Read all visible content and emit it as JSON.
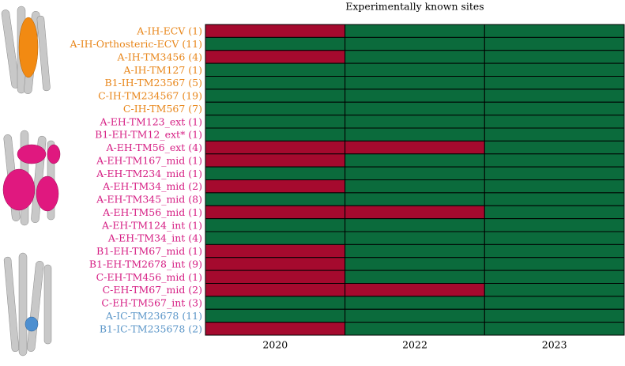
{
  "chart_data": {
    "type": "heatmap",
    "title": "Experimentally known sites",
    "categories": [
      "A-IH-ECV (1)",
      "A-IH-Orthosteric-ECV (11)",
      "A-IH-TM3456 (4)",
      "A-IH-TM127 (1)",
      "B1-IH-TM23567 (5)",
      "C-IH-TM234567 (19)",
      "C-IH-TM567 (7)",
      "A-EH-TM123_ext (1)",
      "B1-EH-TM12_ext* (1)",
      "A-EH-TM56_ext (4)",
      "A-EH-TM167_mid (1)",
      "A-EH-TM234_mid (1)",
      "A-EH-TM34_mid (2)",
      "A-EH-TM345_mid (8)",
      "A-EH-TM56_mid (1)",
      "A-EH-TM124_int (1)",
      "A-EH-TM34_int (4)",
      "B1-EH-TM67_mid (1)",
      "B1-EH-TM2678_int (9)",
      "C-EH-TM456_mid (1)",
      "C-EH-TM67_mid (2)",
      "C-EH-TM567_int (3)",
      "A-IC-TM23678 (11)",
      "B1-IC-TM235678 (2)"
    ],
    "label_colors": [
      "#e8861a",
      "#e8861a",
      "#e8861a",
      "#e8861a",
      "#e8861a",
      "#e8861a",
      "#e8861a",
      "#d61f84",
      "#d61f84",
      "#d61f84",
      "#d61f84",
      "#d61f84",
      "#d61f84",
      "#d61f84",
      "#d61f84",
      "#d61f84",
      "#d61f84",
      "#d61f84",
      "#d61f84",
      "#d61f84",
      "#d61f84",
      "#d61f84",
      "#5b96c8",
      "#5b96c8"
    ],
    "columns": [
      "2020",
      "2022",
      "2023"
    ],
    "values": [
      [
        0,
        1,
        1
      ],
      [
        1,
        1,
        1
      ],
      [
        0,
        1,
        1
      ],
      [
        1,
        1,
        1
      ],
      [
        1,
        1,
        1
      ],
      [
        1,
        1,
        1
      ],
      [
        1,
        1,
        1
      ],
      [
        1,
        1,
        1
      ],
      [
        1,
        1,
        1
      ],
      [
        0,
        0,
        1
      ],
      [
        0,
        1,
        1
      ],
      [
        1,
        1,
        1
      ],
      [
        0,
        1,
        1
      ],
      [
        1,
        1,
        1
      ],
      [
        0,
        0,
        1
      ],
      [
        1,
        1,
        1
      ],
      [
        1,
        1,
        1
      ],
      [
        0,
        1,
        1
      ],
      [
        0,
        1,
        1
      ],
      [
        0,
        1,
        1
      ],
      [
        0,
        0,
        1
      ],
      [
        1,
        1,
        1
      ],
      [
        1,
        1,
        1
      ],
      [
        0,
        1,
        1
      ]
    ],
    "color_map": [
      "#a50a2e",
      "#0b6b3c"
    ]
  }
}
